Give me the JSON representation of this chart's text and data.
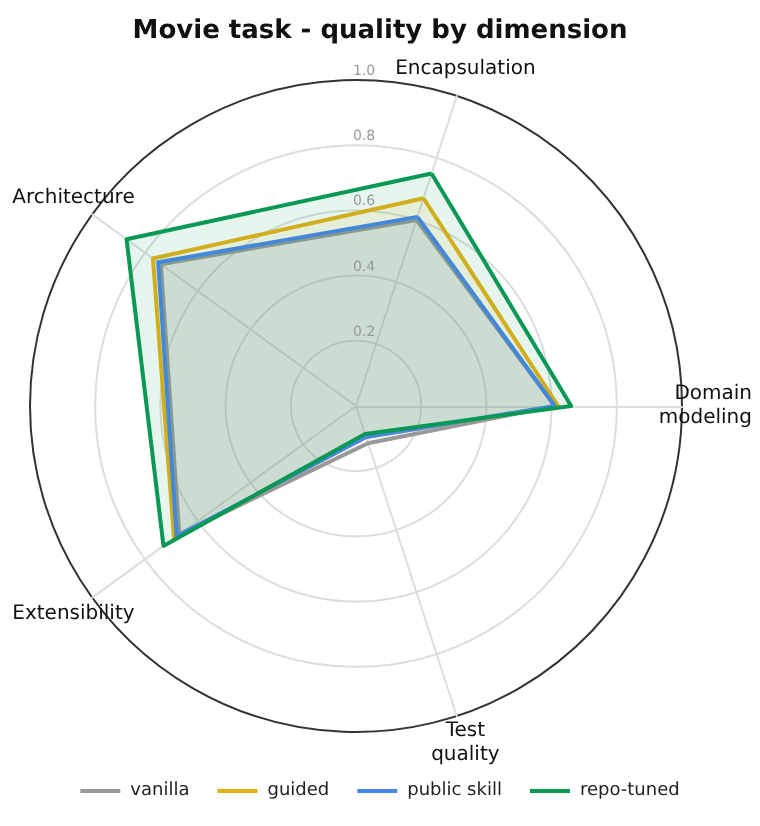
{
  "chart_data": {
    "type": "radar",
    "title": "Movie task - quality by dimension",
    "categories": [
      "Encapsulation",
      "Domain modeling",
      "Test quality",
      "Extensibility",
      "Architecture"
    ],
    "ylim": [
      0,
      1
    ],
    "yticks": [
      0.2,
      0.4,
      0.6,
      0.8,
      {
        "value": 1,
        "label": "1.0"
      }
    ],
    "grid": true,
    "legend": "bottom",
    "series": [
      {
        "name": "vanilla",
        "color": "#999999",
        "values": [
          0.6,
          0.61,
          0.12,
          0.67,
          0.74
        ]
      },
      {
        "name": "guided",
        "color": "#e8b017",
        "values": [
          0.67,
          0.62,
          0.1,
          0.69,
          0.77
        ]
      },
      {
        "name": "public skill",
        "color": "#4a86e8",
        "values": [
          0.61,
          0.61,
          0.1,
          0.68,
          0.75
        ]
      },
      {
        "name": "repo-tuned",
        "color": "#0a9955",
        "values": [
          0.75,
          0.66,
          0.09,
          0.73,
          0.87
        ]
      }
    ]
  }
}
